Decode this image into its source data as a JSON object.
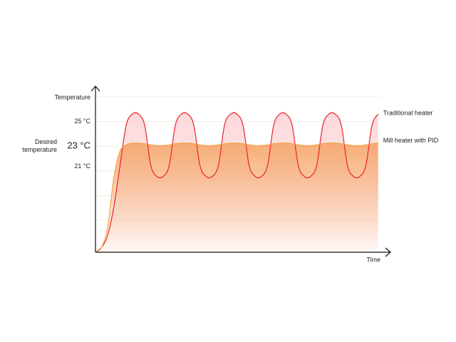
{
  "chart_data": {
    "type": "line",
    "y_label": "Temperature",
    "x_label": "Time",
    "annotation": "Desired temperature",
    "x": [
      0,
      1,
      2,
      3,
      4,
      5,
      6,
      7,
      8,
      9,
      10,
      11,
      12,
      13,
      14,
      15,
      16,
      17,
      18,
      19,
      20,
      21,
      22,
      23,
      24,
      25,
      26,
      27,
      28,
      29,
      30,
      31,
      32,
      33,
      34,
      35,
      36,
      37,
      38,
      39,
      40,
      41,
      42,
      43,
      44,
      45,
      46
    ],
    "series": [
      {
        "name": "Traditional heater",
        "color": "#e8242a",
        "fill": "#fbd3d6",
        "values": [
          14.4,
          14.8,
          15.8,
          18.1,
          21.44,
          24.7,
          25.6,
          25.6,
          24.7,
          21.44,
          20.54,
          20.54,
          21.44,
          24.7,
          25.6,
          25.6,
          24.7,
          21.44,
          20.54,
          20.54,
          21.44,
          24.7,
          25.6,
          25.6,
          24.7,
          21.44,
          20.54,
          20.54,
          21.44,
          24.7,
          25.6,
          25.6,
          24.7,
          21.44,
          20.54,
          20.54,
          21.44,
          24.7,
          25.6,
          25.6,
          24.7,
          21.44,
          20.54,
          20.54,
          21.44,
          24.7,
          25.6
        ]
      },
      {
        "name": "Mill heater with PID",
        "color": "#f2a54e",
        "fill": "#f5a468",
        "values": [
          14.4,
          14.8,
          16.5,
          20.5,
          22.6,
          23.1,
          23.25,
          23.25,
          23.2,
          23.1,
          23.05,
          23.05,
          23.1,
          23.2,
          23.25,
          23.25,
          23.2,
          23.1,
          23.05,
          23.05,
          23.1,
          23.2,
          23.25,
          23.25,
          23.2,
          23.1,
          23.05,
          23.05,
          23.1,
          23.2,
          23.25,
          23.25,
          23.2,
          23.1,
          23.05,
          23.05,
          23.1,
          23.2,
          23.25,
          23.25,
          23.2,
          23.1,
          23.05,
          23.05,
          23.1,
          23.2,
          23.25
        ]
      }
    ],
    "xlim": [
      0,
      48
    ],
    "ylim": [
      14.4,
      27.8
    ],
    "yticks": [
      {
        "value": 25,
        "label": "25 °C"
      },
      {
        "value": 23,
        "label": "23 °C"
      },
      {
        "value": 21,
        "label": "21 °C"
      }
    ],
    "ygrid": [
      17,
      19,
      21,
      23,
      25,
      27
    ],
    "grid": true
  }
}
